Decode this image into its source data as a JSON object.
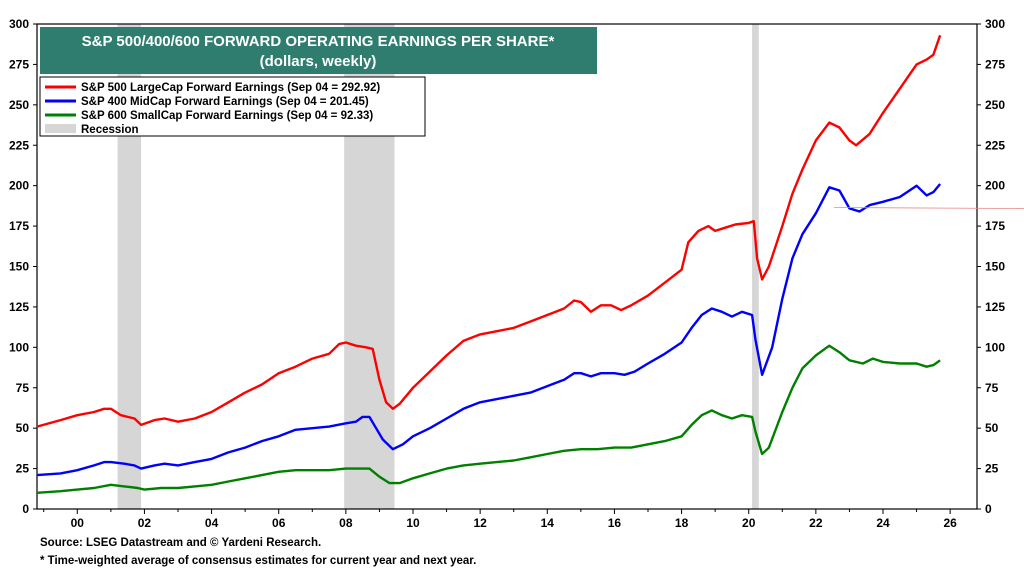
{
  "chart_data": {
    "type": "line",
    "title": "S&P 500/400/600 FORWARD OPERATING EARNINGS PER SHARE*",
    "subtitle": "(dollars, weekly)",
    "xlim": [
      1998.8,
      2026.8
    ],
    "ylim": [
      0,
      300
    ],
    "y_ticks": [
      0,
      25,
      50,
      75,
      100,
      125,
      150,
      175,
      200,
      225,
      250,
      275,
      300
    ],
    "x_ticks": [
      {
        "year": 2000,
        "label": "00"
      },
      {
        "year": 2002,
        "label": "02"
      },
      {
        "year": 2004,
        "label": "04"
      },
      {
        "year": 2006,
        "label": "06"
      },
      {
        "year": 2008,
        "label": "08"
      },
      {
        "year": 2010,
        "label": "10"
      },
      {
        "year": 2012,
        "label": "12"
      },
      {
        "year": 2014,
        "label": "14"
      },
      {
        "year": 2016,
        "label": "16"
      },
      {
        "year": 2018,
        "label": "18"
      },
      {
        "year": 2020,
        "label": "20"
      },
      {
        "year": 2022,
        "label": "22"
      },
      {
        "year": 2024,
        "label": "24"
      },
      {
        "year": 2026,
        "label": "26"
      }
    ],
    "grid": "none",
    "legend_position": "top-left",
    "recessions": [
      [
        2001.2,
        2001.9
      ],
      [
        2007.95,
        2009.45
      ],
      [
        2020.1,
        2020.3
      ]
    ],
    "recession_label": "Recession",
    "recession_color": "#d6d6d6",
    "title_box_color": "#2e7d6f",
    "series": [
      {
        "name": "S&P 500 LargeCap Forward Earnings (Sep 04 = 292.92)",
        "color": "#ff0000",
        "points": [
          [
            1998.8,
            51
          ],
          [
            1999.5,
            55
          ],
          [
            2000.0,
            58
          ],
          [
            2000.5,
            60
          ],
          [
            2000.8,
            62
          ],
          [
            2001.0,
            62
          ],
          [
            2001.3,
            58
          ],
          [
            2001.7,
            56
          ],
          [
            2001.9,
            52
          ],
          [
            2002.3,
            55
          ],
          [
            2002.6,
            56
          ],
          [
            2003.0,
            54
          ],
          [
            2003.5,
            56
          ],
          [
            2004.0,
            60
          ],
          [
            2004.5,
            66
          ],
          [
            2005.0,
            72
          ],
          [
            2005.5,
            77
          ],
          [
            2006.0,
            84
          ],
          [
            2006.5,
            88
          ],
          [
            2007.0,
            93
          ],
          [
            2007.5,
            96
          ],
          [
            2007.8,
            102
          ],
          [
            2008.0,
            103
          ],
          [
            2008.3,
            101
          ],
          [
            2008.6,
            100
          ],
          [
            2008.8,
            99
          ],
          [
            2009.0,
            80
          ],
          [
            2009.2,
            66
          ],
          [
            2009.4,
            62
          ],
          [
            2009.6,
            65
          ],
          [
            2010.0,
            75
          ],
          [
            2010.5,
            85
          ],
          [
            2011.0,
            95
          ],
          [
            2011.5,
            104
          ],
          [
            2012.0,
            108
          ],
          [
            2012.5,
            110
          ],
          [
            2013.0,
            112
          ],
          [
            2013.5,
            116
          ],
          [
            2014.0,
            120
          ],
          [
            2014.5,
            124
          ],
          [
            2014.8,
            129
          ],
          [
            2015.0,
            128
          ],
          [
            2015.3,
            122
          ],
          [
            2015.6,
            126
          ],
          [
            2015.9,
            126
          ],
          [
            2016.2,
            123
          ],
          [
            2016.5,
            126
          ],
          [
            2017.0,
            132
          ],
          [
            2017.5,
            140
          ],
          [
            2018.0,
            148
          ],
          [
            2018.2,
            165
          ],
          [
            2018.5,
            172
          ],
          [
            2018.8,
            175
          ],
          [
            2019.0,
            172
          ],
          [
            2019.3,
            174
          ],
          [
            2019.6,
            176
          ],
          [
            2020.0,
            177
          ],
          [
            2020.15,
            178
          ],
          [
            2020.25,
            155
          ],
          [
            2020.4,
            142
          ],
          [
            2020.6,
            150
          ],
          [
            2021.0,
            175
          ],
          [
            2021.3,
            195
          ],
          [
            2021.6,
            210
          ],
          [
            2022.0,
            228
          ],
          [
            2022.4,
            239
          ],
          [
            2022.7,
            236
          ],
          [
            2023.0,
            228
          ],
          [
            2023.2,
            225
          ],
          [
            2023.6,
            232
          ],
          [
            2024.0,
            245
          ],
          [
            2024.5,
            260
          ],
          [
            2025.0,
            275
          ],
          [
            2025.3,
            278
          ],
          [
            2025.5,
            281
          ],
          [
            2025.7,
            293
          ]
        ]
      },
      {
        "name": "S&P 400 MidCap Forward Earnings (Sep 04 = 201.45)",
        "color": "#0000ff",
        "points": [
          [
            1998.8,
            21
          ],
          [
            1999.5,
            22
          ],
          [
            2000.0,
            24
          ],
          [
            2000.5,
            27
          ],
          [
            2000.8,
            29
          ],
          [
            2001.0,
            29
          ],
          [
            2001.4,
            28
          ],
          [
            2001.7,
            27
          ],
          [
            2001.9,
            25
          ],
          [
            2002.3,
            27
          ],
          [
            2002.6,
            28
          ],
          [
            2003.0,
            27
          ],
          [
            2003.5,
            29
          ],
          [
            2004.0,
            31
          ],
          [
            2004.5,
            35
          ],
          [
            2005.0,
            38
          ],
          [
            2005.5,
            42
          ],
          [
            2006.0,
            45
          ],
          [
            2006.5,
            49
          ],
          [
            2007.0,
            50
          ],
          [
            2007.5,
            51
          ],
          [
            2008.0,
            53
          ],
          [
            2008.3,
            54
          ],
          [
            2008.5,
            57
          ],
          [
            2008.7,
            57
          ],
          [
            2008.9,
            50
          ],
          [
            2009.1,
            43
          ],
          [
            2009.4,
            37
          ],
          [
            2009.7,
            40
          ],
          [
            2010.0,
            45
          ],
          [
            2010.5,
            50
          ],
          [
            2011.0,
            56
          ],
          [
            2011.5,
            62
          ],
          [
            2012.0,
            66
          ],
          [
            2012.5,
            68
          ],
          [
            2013.0,
            70
          ],
          [
            2013.5,
            72
          ],
          [
            2014.0,
            76
          ],
          [
            2014.5,
            80
          ],
          [
            2014.8,
            84
          ],
          [
            2015.0,
            84
          ],
          [
            2015.3,
            82
          ],
          [
            2015.6,
            84
          ],
          [
            2016.0,
            84
          ],
          [
            2016.3,
            83
          ],
          [
            2016.6,
            85
          ],
          [
            2017.0,
            90
          ],
          [
            2017.5,
            96
          ],
          [
            2018.0,
            103
          ],
          [
            2018.3,
            112
          ],
          [
            2018.6,
            120
          ],
          [
            2018.9,
            124
          ],
          [
            2019.2,
            122
          ],
          [
            2019.5,
            119
          ],
          [
            2019.8,
            122
          ],
          [
            2020.1,
            120
          ],
          [
            2020.2,
            105
          ],
          [
            2020.4,
            83
          ],
          [
            2020.7,
            100
          ],
          [
            2021.0,
            130
          ],
          [
            2021.3,
            155
          ],
          [
            2021.6,
            170
          ],
          [
            2022.0,
            183
          ],
          [
            2022.4,
            199
          ],
          [
            2022.7,
            197
          ],
          [
            2023.0,
            186
          ],
          [
            2023.3,
            184
          ],
          [
            2023.6,
            188
          ],
          [
            2024.0,
            190
          ],
          [
            2024.5,
            193
          ],
          [
            2025.0,
            200
          ],
          [
            2025.3,
            194
          ],
          [
            2025.5,
            196
          ],
          [
            2025.7,
            201
          ]
        ]
      },
      {
        "name": "S&P 600 SmallCap Forward Earnings (Sep 04 = 92.33)",
        "color": "#008000",
        "points": [
          [
            1998.8,
            10
          ],
          [
            1999.5,
            11
          ],
          [
            2000.0,
            12
          ],
          [
            2000.5,
            13
          ],
          [
            2001.0,
            15
          ],
          [
            2001.4,
            14
          ],
          [
            2001.8,
            13
          ],
          [
            2002.0,
            12
          ],
          [
            2002.5,
            13
          ],
          [
            2003.0,
            13
          ],
          [
            2003.5,
            14
          ],
          [
            2004.0,
            15
          ],
          [
            2004.5,
            17
          ],
          [
            2005.0,
            19
          ],
          [
            2005.5,
            21
          ],
          [
            2006.0,
            23
          ],
          [
            2006.5,
            24
          ],
          [
            2007.0,
            24
          ],
          [
            2007.5,
            24
          ],
          [
            2008.0,
            25
          ],
          [
            2008.5,
            25
          ],
          [
            2008.7,
            25
          ],
          [
            2009.0,
            20
          ],
          [
            2009.3,
            16
          ],
          [
            2009.6,
            16
          ],
          [
            2010.0,
            19
          ],
          [
            2010.5,
            22
          ],
          [
            2011.0,
            25
          ],
          [
            2011.5,
            27
          ],
          [
            2012.0,
            28
          ],
          [
            2012.5,
            29
          ],
          [
            2013.0,
            30
          ],
          [
            2013.5,
            32
          ],
          [
            2014.0,
            34
          ],
          [
            2014.5,
            36
          ],
          [
            2015.0,
            37
          ],
          [
            2015.5,
            37
          ],
          [
            2016.0,
            38
          ],
          [
            2016.5,
            38
          ],
          [
            2017.0,
            40
          ],
          [
            2017.5,
            42
          ],
          [
            2018.0,
            45
          ],
          [
            2018.3,
            52
          ],
          [
            2018.6,
            58
          ],
          [
            2018.9,
            61
          ],
          [
            2019.2,
            58
          ],
          [
            2019.5,
            56
          ],
          [
            2019.8,
            58
          ],
          [
            2020.1,
            57
          ],
          [
            2020.2,
            48
          ],
          [
            2020.4,
            34
          ],
          [
            2020.6,
            38
          ],
          [
            2021.0,
            60
          ],
          [
            2021.3,
            75
          ],
          [
            2021.6,
            87
          ],
          [
            2022.0,
            95
          ],
          [
            2022.4,
            101
          ],
          [
            2022.7,
            97
          ],
          [
            2023.0,
            92
          ],
          [
            2023.4,
            90
          ],
          [
            2023.7,
            93
          ],
          [
            2024.0,
            91
          ],
          [
            2024.5,
            90
          ],
          [
            2025.0,
            90
          ],
          [
            2025.3,
            88
          ],
          [
            2025.5,
            89
          ],
          [
            2025.7,
            92
          ]
        ]
      }
    ],
    "source": "Source: LSEG Datastream and © Yardeni Research.",
    "footnote": "* Time-weighted average of consensus estimates for current year and next year."
  }
}
